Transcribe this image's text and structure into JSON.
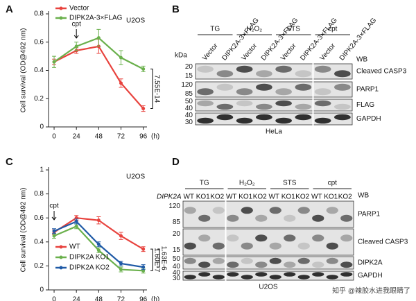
{
  "chart_data": [
    {
      "type": "line",
      "panel": "A",
      "ylabel": "Cell survival (OD@492 nm)",
      "xlabel": "(h)",
      "x": [
        0,
        24,
        48,
        72,
        96
      ],
      "xlim": [
        -6,
        100
      ],
      "xticks": [
        0,
        24,
        48,
        72,
        96
      ],
      "ylim": [
        0,
        0.8
      ],
      "yticks": [
        0,
        0.2,
        0.4,
        0.6,
        0.8
      ],
      "legend": "top-left",
      "series": [
        {
          "name": "Vector",
          "color": "#e8433e",
          "values": [
            0.46,
            0.54,
            0.57,
            0.31,
            0.13
          ],
          "errors": [
            0.02,
            0.02,
            0.05,
            0.03,
            0.02
          ]
        },
        {
          "name": "DIPK2A-3×FLAG",
          "color": "#6ab04c",
          "values": [
            0.46,
            0.57,
            0.63,
            0.49,
            0.41
          ],
          "errors": [
            0.04,
            0.03,
            0.06,
            0.05,
            0.02
          ]
        }
      ],
      "annotations": {
        "treatment": "cpt",
        "cell_line": "U2OS",
        "p_values": [
          "7.55E-14"
        ]
      }
    },
    {
      "type": "line",
      "panel": "C",
      "ylabel": "Cell survival (OD@492 nm)",
      "xlabel": "(h)",
      "x": [
        0,
        24,
        48,
        72,
        96
      ],
      "xlim": [
        -6,
        100
      ],
      "xticks": [
        0,
        24,
        48,
        72,
        96
      ],
      "ylim": [
        0,
        1.0
      ],
      "yticks": [
        0,
        0.2,
        0.4,
        0.6,
        0.8,
        1.0
      ],
      "legend": "bottom-left",
      "series": [
        {
          "name": "WT",
          "color": "#e8433e",
          "values": [
            0.48,
            0.6,
            0.58,
            0.45,
            0.34
          ],
          "errors": [
            0.02,
            0.02,
            0.03,
            0.03,
            0.02
          ]
        },
        {
          "name": "DIPK2A KO1",
          "color": "#6ab04c",
          "values": [
            0.45,
            0.53,
            0.33,
            0.17,
            0.16
          ],
          "errors": [
            0.02,
            0.02,
            0.02,
            0.02,
            0.02
          ]
        },
        {
          "name": "DIPK2A KO2",
          "color": "#1f5aa6",
          "values": [
            0.49,
            0.57,
            0.38,
            0.22,
            0.19
          ],
          "errors": [
            0.02,
            0.02,
            0.02,
            0.02,
            0.02
          ]
        }
      ],
      "annotations": {
        "treatment": "cpt",
        "cell_line": "U2OS",
        "p_values": [
          "1.60E-7",
          "1.63E-6"
        ]
      }
    }
  ],
  "blots": [
    {
      "panel": "B",
      "kda_label": "kDa",
      "groups": [
        "TG",
        "H₂O₂",
        "STS",
        "cpt"
      ],
      "lanes": [
        "Vector",
        "DIPK2A-3×FLAG",
        "Vector",
        "DIPK2A-3×FLAG",
        "Vector",
        "DIPK2A-3×FLAG",
        "Vector",
        "DIPK2A-3×FLAG"
      ],
      "markers": [
        "20",
        "15",
        "120",
        "85",
        "50",
        "40",
        "40",
        "30"
      ],
      "wb": "WB",
      "rows": [
        "Cleaved CASP3",
        "PARP1",
        "FLAG",
        "GAPDH"
      ],
      "cell_line": "HeLa"
    },
    {
      "panel": "D",
      "row_label": "DIPK2A",
      "groups": [
        "TG",
        "H₂O₂",
        "STS",
        "cpt"
      ],
      "lanes": [
        "WT",
        "KO1",
        "KO2",
        "WT",
        "KO1",
        "KO2",
        "WT",
        "KO1",
        "KO2",
        "WT",
        "KO1",
        "KO2"
      ],
      "markers": [
        "120",
        "85",
        "20",
        "15",
        "50",
        "40",
        "40",
        "30"
      ],
      "wb": "WB",
      "rows": [
        "PARP1",
        "Cleaved CASP3",
        "DIPK2A",
        "GAPDH"
      ],
      "cell_line": "U2OS"
    }
  ],
  "watermark": "知乎 @辣胶水进我眼睛了"
}
